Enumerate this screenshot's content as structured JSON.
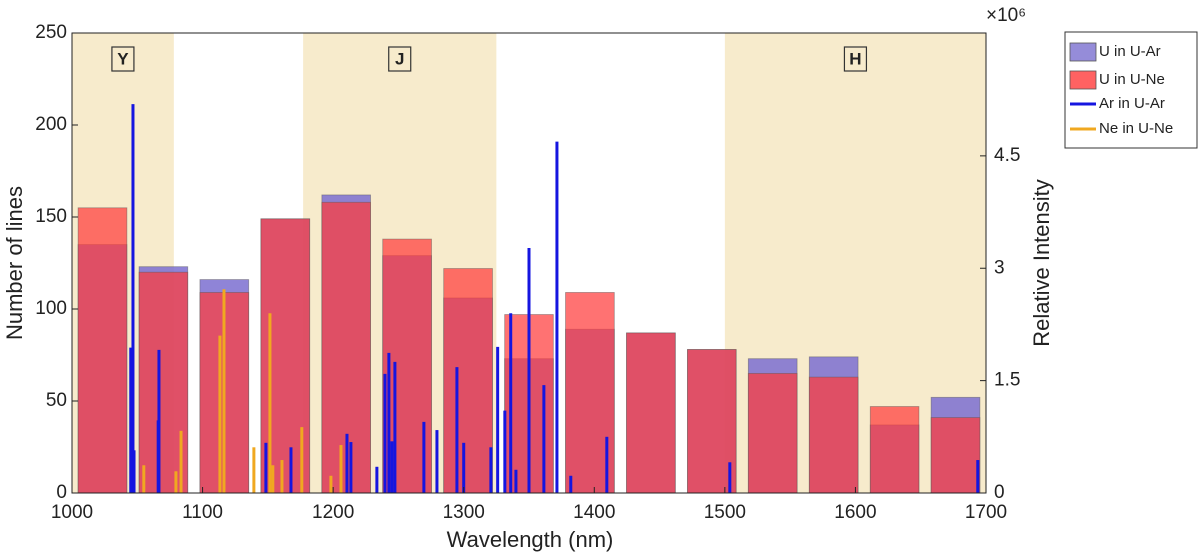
{
  "chart_data": {
    "type": "histogram",
    "x_label": "Wavelength (nm)",
    "y_label": "Number of lines",
    "y2_label": "Relative Intensity",
    "y2_scale_label": "×10⁶",
    "bins": [
      1000,
      1046.7,
      1093.3,
      1140,
      1186.7,
      1233.3,
      1280,
      1326.7,
      1373.3,
      1420,
      1466.7,
      1513.3,
      1560,
      1606.7,
      1653.3,
      1700
    ],
    "series": [
      {
        "name": "U in U-Ar",
        "color": "#7b6fd0",
        "values": [
          135,
          123,
          116,
          149,
          162,
          129,
          106,
          73,
          89,
          87,
          78,
          73,
          74,
          37,
          52
        ]
      },
      {
        "name": "U in U-Ne",
        "color": "#ff3b3b",
        "values": [
          155,
          120,
          109,
          149,
          158,
          138,
          122,
          97,
          109,
          87,
          78,
          65,
          63,
          47,
          41
        ]
      }
    ],
    "lines": [
      {
        "name": "Ar in U-Ar",
        "color": "#1515e0",
        "axis": "y2",
        "x": [
          1046.7,
          1047.5,
          1045,
          1066.6,
          1066,
          1148.5,
          1167.7,
          1210.6,
          1213.6,
          1233.5,
          1239.7,
          1242.7,
          1245,
          1247.3,
          1269.5,
          1279.5,
          1294.8,
          1300,
          1320.8,
          1326,
          1331.5,
          1336,
          1340,
          1350,
          1361.4,
          1371.4,
          1382,
          1409.6,
          1503.8,
          1693.7
        ],
        "values": [
          5.19,
          0.57,
          1.94,
          1.91,
          0.97,
          0.67,
          0.61,
          0.79,
          0.68,
          0.35,
          1.59,
          1.87,
          0.69,
          1.75,
          0.95,
          0.84,
          1.68,
          0.67,
          0.61,
          1.95,
          1.1,
          2.4,
          0.31,
          3.27,
          1.44,
          4.69,
          0.23,
          0.75,
          0.41,
          0.44
        ]
      },
      {
        "name": "Ne in U-Ne",
        "color": "#f0a820",
        "axis": "y2",
        "x": [
          1055,
          1079.6,
          1083.5,
          1113.3,
          1116.4,
          1139.3,
          1151.6,
          1153.8,
          1160.8,
          1176,
          1198.3,
          1206
        ],
        "values": [
          0.37,
          0.29,
          0.83,
          2.1,
          2.72,
          0.61,
          2.4,
          0.37,
          0.44,
          0.88,
          0.23,
          0.64
        ]
      }
    ],
    "regions": [
      {
        "label": "Y",
        "start": 1000,
        "end": 1078
      },
      {
        "label": "J",
        "start": 1177,
        "end": 1325
      },
      {
        "label": "H",
        "start": 1500,
        "end": 1700
      }
    ],
    "region_color": "#f7ebcc",
    "xlim": [
      1000,
      1700
    ],
    "xticks": [
      1000,
      1100,
      1200,
      1300,
      1400,
      1500,
      1600,
      1700
    ],
    "ylim": [
      0,
      250
    ],
    "yticks": [
      0,
      50,
      100,
      150,
      200,
      250
    ],
    "y2lim": [
      0,
      6.14
    ],
    "y2ticks": [
      0,
      1.5,
      3,
      4.5
    ],
    "legend": "outside-right"
  }
}
